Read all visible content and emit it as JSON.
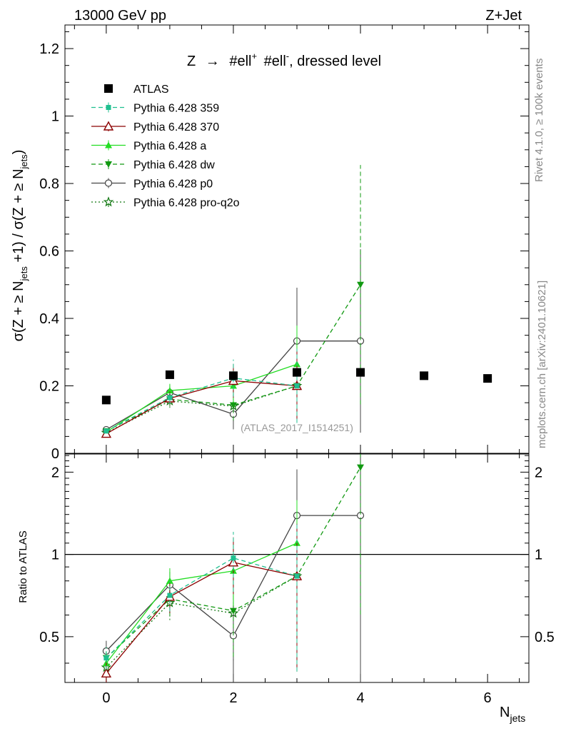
{
  "header": {
    "left": "13000 GeV pp",
    "right": "Z+Jet"
  },
  "side_labels": {
    "rivet": "Rivet 4.1.0, ≥ 100k events",
    "mcplots": "mcplots.cern.ch [arXiv:2401.10621]"
  },
  "watermark": "(ATLAS_2017_I1514251)",
  "chart_data": [
    {
      "type": "scatter",
      "panel": "main",
      "title": "Z → #ell⁺ #ell⁻, dressed level",
      "title_parts": {
        "lead": "Z",
        "arrow": "→",
        "l1": "#ell",
        "sup1": "+",
        "l2": "#ell",
        "sup2": "-",
        "tail": ", dressed level"
      },
      "ylabel_parts": [
        "σ(Z + ≥ N",
        "jets",
        " +1) / σ(Z + ≥ N",
        "jets",
        ")"
      ],
      "xlim": [
        -0.65,
        6.65
      ],
      "ylim": [
        0,
        1.27
      ],
      "yticks": [
        0,
        0.2,
        0.4,
        0.6,
        0.8,
        1,
        1.2
      ],
      "ytick_labels": [
        "0",
        "0.2",
        "0.4",
        "0.6",
        "0.8",
        "1",
        "1.2"
      ],
      "legend_position": "top-left",
      "series": [
        {
          "name": "ATLAS",
          "color": "#000000",
          "marker": "square",
          "line": "none",
          "x": [
            0,
            1,
            2,
            3,
            4,
            5,
            6
          ],
          "y": [
            0.158,
            0.233,
            0.23,
            0.24,
            0.24,
            0.23,
            0.222
          ],
          "err": [
            0,
            0,
            0,
            0,
            0,
            0,
            0
          ]
        },
        {
          "name": "Pythia 6.428 359",
          "color": "#1fbf8f",
          "marker": "small-square",
          "line": "dashed",
          "x": [
            0,
            1,
            2,
            3
          ],
          "y": [
            0.066,
            0.165,
            0.223,
            0.2
          ],
          "err": [
            0.006,
            0.02,
            0.055,
            0.11
          ]
        },
        {
          "name": "Pythia 6.428 370",
          "color": "#8b0000",
          "marker": "open-triangle",
          "line": "solid",
          "x": [
            0,
            1,
            2,
            3
          ],
          "y": [
            0.058,
            0.163,
            0.215,
            0.2
          ],
          "err": [
            0.006,
            0.02,
            0.05,
            0.11
          ]
        },
        {
          "name": "Pythia 6.428 a",
          "color": "#22dd22",
          "marker": "triangle",
          "line": "solid",
          "x": [
            0,
            1,
            2,
            3
          ],
          "y": [
            0.063,
            0.186,
            0.2,
            0.264
          ],
          "err": [
            0.006,
            0.02,
            0.05,
            0.115
          ]
        },
        {
          "name": "Pythia 6.428 dw",
          "color": "#119911",
          "marker": "triangle-down",
          "line": "dashed",
          "x": [
            0,
            1,
            2,
            3,
            4
          ],
          "y": [
            0.066,
            0.16,
            0.143,
            0.2,
            0.5
          ],
          "err": [
            0.006,
            0.02,
            0.045,
            0.11,
            0.355
          ]
        },
        {
          "name": "Pythia 6.428 p0",
          "color": "#444444",
          "marker": "open-circle",
          "line": "solid",
          "x": [
            0,
            1,
            2,
            3,
            4
          ],
          "y": [
            0.07,
            0.18,
            0.116,
            0.333,
            0.333
          ],
          "err": [
            0.007,
            0.022,
            0.045,
            0.158,
            0.272
          ]
        },
        {
          "name": "Pythia 6.428 pro-q2o",
          "color": "#117711",
          "marker": "star",
          "line": "dotted",
          "x": [
            0,
            1,
            2,
            3
          ],
          "y": [
            0.061,
            0.155,
            0.14,
            0.2
          ],
          "err": [
            0.006,
            0.02,
            0.045,
            0.11
          ]
        }
      ]
    },
    {
      "type": "scatter",
      "panel": "ratio",
      "ylabel": "Ratio to ATLAS",
      "xlabel": "N",
      "xlabel_sub": "jets",
      "xlim": [
        -0.65,
        6.65
      ],
      "ylim": [
        0.34,
        2.33
      ],
      "xticks": [
        0,
        2,
        4,
        6
      ],
      "xtick_labels": [
        "0",
        "2",
        "4",
        "6"
      ],
      "yticks": [
        0.5,
        1,
        2
      ],
      "ytick_labels": [
        "0.5",
        "1",
        "2"
      ],
      "reference_line": 1,
      "series": [
        {
          "name": "Pythia 6.428 359",
          "x": [
            0,
            1,
            2,
            3
          ],
          "y": [
            0.418,
            0.708,
            0.97,
            0.833
          ],
          "err": [
            0.04,
            0.09,
            0.24,
            0.46
          ]
        },
        {
          "name": "Pythia 6.428 370",
          "x": [
            0,
            1,
            2,
            3
          ],
          "y": [
            0.367,
            0.7,
            0.935,
            0.833
          ],
          "err": [
            0.04,
            0.09,
            0.22,
            0.46
          ]
        },
        {
          "name": "Pythia 6.428 a",
          "x": [
            0,
            1,
            2,
            3
          ],
          "y": [
            0.4,
            0.8,
            0.87,
            1.1
          ],
          "err": [
            0.04,
            0.09,
            0.22,
            0.48
          ]
        },
        {
          "name": "Pythia 6.428 dw",
          "x": [
            0,
            1,
            2,
            3,
            4
          ],
          "y": [
            0.418,
            0.687,
            0.622,
            0.833,
            2.083
          ],
          "err": [
            0.04,
            0.09,
            0.2,
            0.46,
            1.48
          ]
        },
        {
          "name": "Pythia 6.428 p0",
          "x": [
            0,
            1,
            2,
            3,
            4
          ],
          "y": [
            0.443,
            0.773,
            0.504,
            1.388,
            1.388
          ],
          "err": [
            0.04,
            0.09,
            0.2,
            0.66,
            1.13
          ]
        },
        {
          "name": "Pythia 6.428 pro-q2o",
          "x": [
            0,
            1,
            2,
            3
          ],
          "y": [
            0.386,
            0.665,
            0.609,
            0.833
          ],
          "err": [
            0.04,
            0.09,
            0.2,
            0.46
          ]
        }
      ]
    }
  ]
}
